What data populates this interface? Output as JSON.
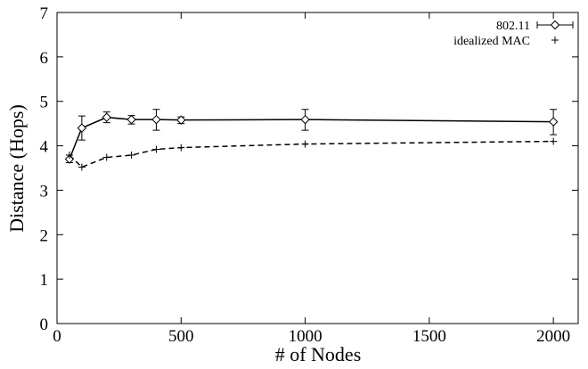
{
  "chart_data": {
    "type": "line",
    "title": "",
    "xlabel": "# of Nodes",
    "ylabel": "Distance (Hops)",
    "xlim": [
      0,
      2100
    ],
    "ylim": [
      0,
      7
    ],
    "xticks": [
      0,
      500,
      1000,
      1500,
      2000
    ],
    "yticks": [
      0,
      1,
      2,
      3,
      4,
      5,
      6,
      7
    ],
    "grid": false,
    "legend_position": "top-right",
    "series": [
      {
        "name": "802.11",
        "style": "solid line, diamond markers, error bars",
        "x": [
          50,
          100,
          200,
          300,
          400,
          500,
          1000,
          2000
        ],
        "values": [
          3.7,
          4.4,
          4.64,
          4.59,
          4.59,
          4.58,
          4.59,
          4.54
        ],
        "err_low": [
          3.62,
          4.13,
          4.52,
          4.49,
          4.35,
          4.5,
          4.35,
          4.25
        ],
        "err_high": [
          3.79,
          4.67,
          4.76,
          4.68,
          4.82,
          4.65,
          4.82,
          4.82
        ]
      },
      {
        "name": "idealized MAC",
        "style": "dashed line, plus markers",
        "x": [
          50,
          100,
          200,
          300,
          400,
          500,
          1000,
          2000
        ],
        "values": [
          3.79,
          3.52,
          3.74,
          3.79,
          3.92,
          3.96,
          4.04,
          4.1
        ]
      }
    ]
  },
  "colors": {
    "line": "#000000",
    "background": "#ffffff"
  }
}
